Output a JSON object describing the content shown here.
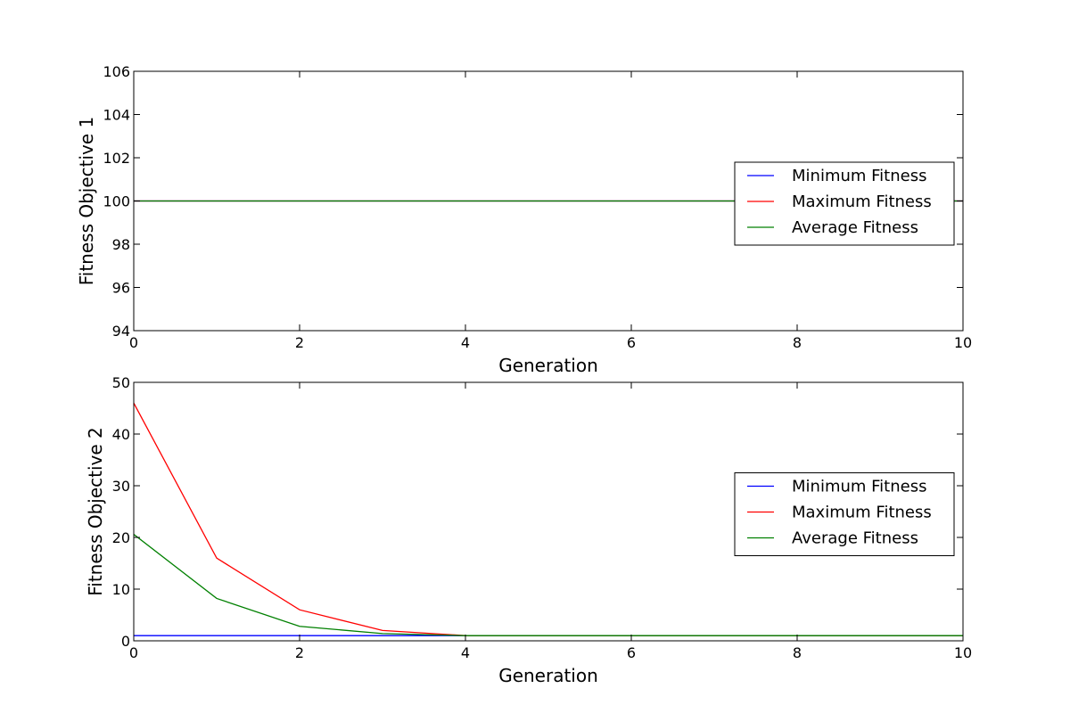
{
  "chart_data": [
    {
      "type": "line",
      "title": "",
      "xlabel": "Generation",
      "ylabel": "Fitness Objective 1",
      "xlim": [
        0,
        10
      ],
      "ylim": [
        94,
        106
      ],
      "xticks": [
        0,
        2,
        4,
        6,
        8,
        10
      ],
      "yticks": [
        94,
        96,
        98,
        100,
        102,
        104,
        106
      ],
      "x": [
        0,
        1,
        2,
        3,
        4,
        5,
        6,
        7,
        8,
        9,
        10
      ],
      "legend_position": "center-right",
      "grid": false,
      "series": [
        {
          "name": "Minimum Fitness",
          "color": "#0000ff",
          "values": [
            100,
            100,
            100,
            100,
            100,
            100,
            100,
            100,
            100,
            100,
            100
          ]
        },
        {
          "name": "Maximum Fitness",
          "color": "#ff0000",
          "values": [
            100,
            100,
            100,
            100,
            100,
            100,
            100,
            100,
            100,
            100,
            100
          ]
        },
        {
          "name": "Average Fitness",
          "color": "#008000",
          "values": [
            100,
            100,
            100,
            100,
            100,
            100,
            100,
            100,
            100,
            100,
            100
          ]
        }
      ]
    },
    {
      "type": "line",
      "title": "",
      "xlabel": "Generation",
      "ylabel": "Fitness Objective 2",
      "xlim": [
        0,
        10
      ],
      "ylim": [
        0,
        50
      ],
      "xticks": [
        0,
        2,
        4,
        6,
        8,
        10
      ],
      "yticks": [
        0,
        10,
        20,
        30,
        40,
        50
      ],
      "x": [
        0,
        1,
        2,
        3,
        4,
        5,
        6,
        7,
        8,
        9,
        10
      ],
      "legend_position": "center-right",
      "grid": false,
      "series": [
        {
          "name": "Minimum Fitness",
          "color": "#0000ff",
          "values": [
            1,
            1,
            1,
            1,
            1,
            1,
            1,
            1,
            1,
            1,
            1
          ]
        },
        {
          "name": "Maximum Fitness",
          "color": "#ff0000",
          "values": [
            46,
            16,
            6,
            2,
            1,
            1,
            1,
            1,
            1,
            1,
            1
          ]
        },
        {
          "name": "Average Fitness",
          "color": "#008000",
          "values": [
            20.6,
            8.2,
            2.8,
            1.4,
            1,
            1,
            1,
            1,
            1,
            1,
            1
          ]
        }
      ]
    }
  ]
}
